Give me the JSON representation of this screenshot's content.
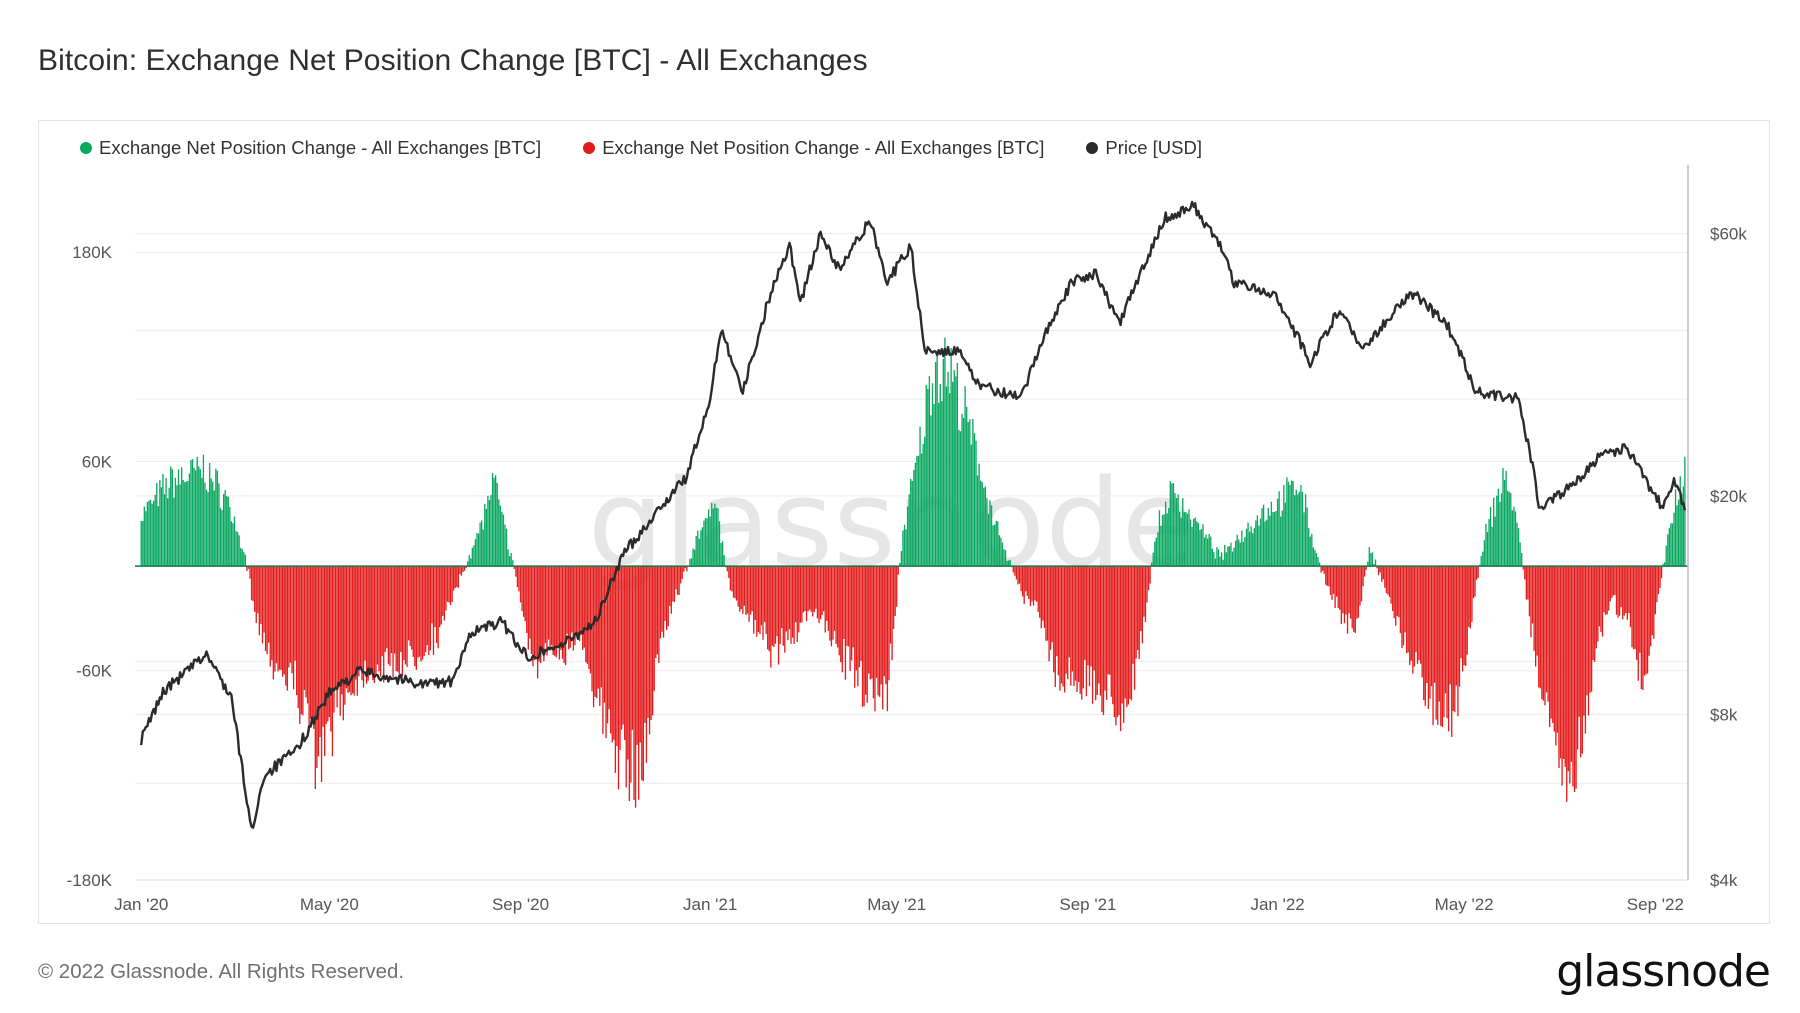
{
  "title": "Bitcoin: Exchange Net Position Change [BTC] - All Exchanges",
  "footer": "© 2022 Glassnode. All Rights Reserved.",
  "brand": "glassnode",
  "watermark": "glassnode",
  "colors": {
    "green": "#0aa760",
    "red": "#e31b1b",
    "price": "#2b2b2b",
    "grid": "#ececec",
    "zero": "#0e7a4a"
  },
  "chart_data": {
    "type": "bar",
    "legend": [
      {
        "name": "Exchange Net Position Change - All Exchanges [BTC]",
        "color": "#0aa760"
      },
      {
        "name": "Exchange Net Position Change - All Exchanges [BTC]",
        "color": "#e31b1b"
      },
      {
        "name": "Price [USD]",
        "color": "#2b2b2b"
      }
    ],
    "legend_position": "top-left",
    "grid": true,
    "x_ticks": [
      "Jan '20",
      "May '20",
      "Sep '20",
      "Jan '21",
      "May '21",
      "Sep '21",
      "Jan '22",
      "May '22",
      "Sep '22"
    ],
    "x_tick_dates": [
      "2020-01-01",
      "2020-05-01",
      "2020-09-01",
      "2021-01-01",
      "2021-05-01",
      "2021-09-01",
      "2022-01-01",
      "2022-05-01",
      "2022-09-01"
    ],
    "x_range": [
      "2019-12-28",
      "2022-09-22"
    ],
    "y_left": {
      "ticks": [
        180000,
        60000,
        -60000,
        -180000
      ],
      "tick_labels": [
        "180K",
        "60K",
        "-60K",
        "-180K"
      ],
      "range": [
        -180000,
        230000
      ]
    },
    "y_right": {
      "scale": "log",
      "ticks": [
        60000,
        20000,
        8000,
        4000
      ],
      "tick_labels": [
        "$60k",
        "$20k",
        "$8k",
        "$4k"
      ],
      "range": [
        4000,
        80000
      ]
    },
    "net_position_anchors": [
      [
        "2020-01-01",
        30000
      ],
      [
        "2020-01-20",
        50000
      ],
      [
        "2020-02-10",
        57000
      ],
      [
        "2020-02-25",
        40000
      ],
      [
        "2020-03-08",
        5000
      ],
      [
        "2020-03-15",
        -30000
      ],
      [
        "2020-03-25",
        -55000
      ],
      [
        "2020-04-10",
        -70000
      ],
      [
        "2020-04-25",
        -120000
      ],
      [
        "2020-05-05",
        -85000
      ],
      [
        "2020-05-25",
        -60000
      ],
      [
        "2020-06-20",
        -55000
      ],
      [
        "2020-07-10",
        -40000
      ],
      [
        "2020-07-25",
        -5000
      ],
      [
        "2020-08-05",
        20000
      ],
      [
        "2020-08-15",
        50000
      ],
      [
        "2020-08-25",
        10000
      ],
      [
        "2020-09-10",
        -60000
      ],
      [
        "2020-09-25",
        -50000
      ],
      [
        "2020-10-10",
        -40000
      ],
      [
        "2020-10-25",
        -95000
      ],
      [
        "2020-11-10",
        -125000
      ],
      [
        "2020-11-20",
        -110000
      ],
      [
        "2020-12-01",
        -40000
      ],
      [
        "2020-12-15",
        -5000
      ],
      [
        "2020-12-25",
        20000
      ],
      [
        "2021-01-05",
        35000
      ],
      [
        "2021-01-15",
        -20000
      ],
      [
        "2021-01-25",
        -30000
      ],
      [
        "2021-02-10",
        -50000
      ],
      [
        "2021-02-25",
        -40000
      ],
      [
        "2021-03-10",
        -25000
      ],
      [
        "2021-03-25",
        -50000
      ],
      [
        "2021-04-10",
        -70000
      ],
      [
        "2021-04-25",
        -75000
      ],
      [
        "2021-05-05",
        20000
      ],
      [
        "2021-05-15",
        65000
      ],
      [
        "2021-05-25",
        120000
      ],
      [
        "2021-06-05",
        115000
      ],
      [
        "2021-06-20",
        70000
      ],
      [
        "2021-07-05",
        20000
      ],
      [
        "2021-07-20",
        -15000
      ],
      [
        "2021-08-01",
        -30000
      ],
      [
        "2021-08-15",
        -70000
      ],
      [
        "2021-08-25",
        -65000
      ],
      [
        "2021-09-10",
        -75000
      ],
      [
        "2021-09-25",
        -85000
      ],
      [
        "2021-10-05",
        -50000
      ],
      [
        "2021-10-15",
        20000
      ],
      [
        "2021-10-25",
        45000
      ],
      [
        "2021-11-10",
        25000
      ],
      [
        "2021-11-25",
        5000
      ],
      [
        "2021-12-05",
        15000
      ],
      [
        "2021-12-20",
        30000
      ],
      [
        "2022-01-05",
        40000
      ],
      [
        "2022-01-15",
        50000
      ],
      [
        "2022-01-25",
        10000
      ],
      [
        "2022-02-05",
        -20000
      ],
      [
        "2022-02-20",
        -40000
      ],
      [
        "2022-03-01",
        10000
      ],
      [
        "2022-03-10",
        -10000
      ],
      [
        "2022-03-25",
        -50000
      ],
      [
        "2022-04-10",
        -80000
      ],
      [
        "2022-04-25",
        -85000
      ],
      [
        "2022-05-05",
        -35000
      ],
      [
        "2022-05-15",
        20000
      ],
      [
        "2022-05-28",
        55000
      ],
      [
        "2022-06-05",
        20000
      ],
      [
        "2022-06-15",
        -50000
      ],
      [
        "2022-06-25",
        -100000
      ],
      [
        "2022-07-05",
        -120000
      ],
      [
        "2022-07-15",
        -110000
      ],
      [
        "2022-07-25",
        -45000
      ],
      [
        "2022-08-05",
        -20000
      ],
      [
        "2022-08-15",
        -35000
      ],
      [
        "2022-08-25",
        -75000
      ],
      [
        "2022-09-05",
        -5000
      ],
      [
        "2022-09-15",
        45000
      ],
      [
        "2022-09-20",
        60000
      ]
    ],
    "price_anchors": [
      [
        "2020-01-01",
        7200
      ],
      [
        "2020-01-15",
        8800
      ],
      [
        "2020-02-12",
        10300
      ],
      [
        "2020-02-28",
        8600
      ],
      [
        "2020-03-12",
        4900
      ],
      [
        "2020-03-20",
        6200
      ],
      [
        "2020-04-10",
        6900
      ],
      [
        "2020-04-30",
        8700
      ],
      [
        "2020-05-20",
        9600
      ],
      [
        "2020-06-30",
        9100
      ],
      [
        "2020-07-20",
        9200
      ],
      [
        "2020-07-31",
        11300
      ],
      [
        "2020-08-20",
        11800
      ],
      [
        "2020-09-05",
        10200
      ],
      [
        "2020-09-30",
        10800
      ],
      [
        "2020-10-20",
        11900
      ],
      [
        "2020-11-05",
        15500
      ],
      [
        "2020-11-30",
        19100
      ],
      [
        "2020-12-16",
        21500
      ],
      [
        "2020-12-31",
        29000
      ],
      [
        "2021-01-08",
        40500
      ],
      [
        "2021-01-22",
        31000
      ],
      [
        "2021-02-08",
        46000
      ],
      [
        "2021-02-21",
        57500
      ],
      [
        "2021-02-28",
        45000
      ],
      [
        "2021-03-13",
        60000
      ],
      [
        "2021-03-25",
        51500
      ],
      [
        "2021-04-14",
        63500
      ],
      [
        "2021-04-25",
        49000
      ],
      [
        "2021-05-10",
        57000
      ],
      [
        "2021-05-19",
        37000
      ],
      [
        "2021-06-10",
        36500
      ],
      [
        "2021-06-22",
        32000
      ],
      [
        "2021-07-20",
        30000
      ],
      [
        "2021-08-05",
        40000
      ],
      [
        "2021-08-22",
        49000
      ],
      [
        "2021-09-06",
        51000
      ],
      [
        "2021-09-21",
        41000
      ],
      [
        "2021-10-10",
        55000
      ],
      [
        "2021-10-20",
        64000
      ],
      [
        "2021-11-08",
        67500
      ],
      [
        "2021-11-25",
        57000
      ],
      [
        "2021-12-04",
        49000
      ],
      [
        "2021-12-31",
        46500
      ],
      [
        "2022-01-22",
        35000
      ],
      [
        "2022-02-10",
        44000
      ],
      [
        "2022-02-24",
        37000
      ],
      [
        "2022-03-28",
        47000
      ],
      [
        "2022-04-20",
        41000
      ],
      [
        "2022-05-09",
        31000
      ],
      [
        "2022-06-05",
        30000
      ],
      [
        "2022-06-15",
        22000
      ],
      [
        "2022-06-18",
        19000
      ],
      [
        "2022-07-10",
        21000
      ],
      [
        "2022-07-30",
        24000
      ],
      [
        "2022-08-14",
        24400
      ],
      [
        "2022-08-25",
        21500
      ],
      [
        "2022-09-06",
        19000
      ],
      [
        "2022-09-13",
        21500
      ],
      [
        "2022-09-20",
        19000
      ]
    ]
  }
}
